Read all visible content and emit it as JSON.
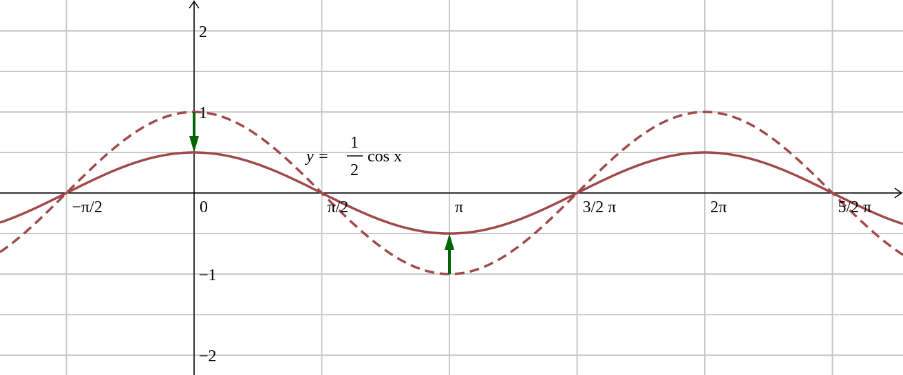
{
  "chart_data": {
    "type": "function",
    "xlim": [
      -2.388,
      8.722
    ],
    "ylim": [
      -2.245,
      2.381
    ],
    "xticks": [
      {
        "value": -1.5708,
        "label": "−π/2"
      },
      0,
      {
        "value": 1.5708,
        "label": "π/2"
      },
      {
        "value": 3.1416,
        "label": "π"
      },
      {
        "value": 4.7124,
        "label": "3/2 π"
      },
      {
        "value": 6.2832,
        "label": "2π"
      },
      {
        "value": 7.854,
        "label": "5/2 π"
      }
    ],
    "yticks": [
      2,
      1,
      {
        "value": -1,
        "label": "−1"
      },
      {
        "value": -2,
        "label": "−2"
      }
    ],
    "ygrid": [
      -2,
      -1.5,
      -1,
      -0.5,
      0,
      0.5,
      1,
      1.5,
      2
    ],
    "grid": true,
    "series": [
      {
        "function": "cos",
        "amplitude": 0.5,
        "color": "#a0494b",
        "dashed": false
      },
      {
        "function": "cos",
        "amplitude": 1,
        "color": "#a0494b",
        "dashed": true
      }
    ],
    "arrows": [
      {
        "x": 0,
        "from": 1,
        "to": 0.5
      },
      {
        "x": 3.1416,
        "from": -1,
        "to": -0.5
      }
    ],
    "arrow_color": "#006400",
    "annotation": {
      "lhs": "y =",
      "numerator": "1",
      "denominator": "2",
      "rhs": "cos x"
    }
  }
}
